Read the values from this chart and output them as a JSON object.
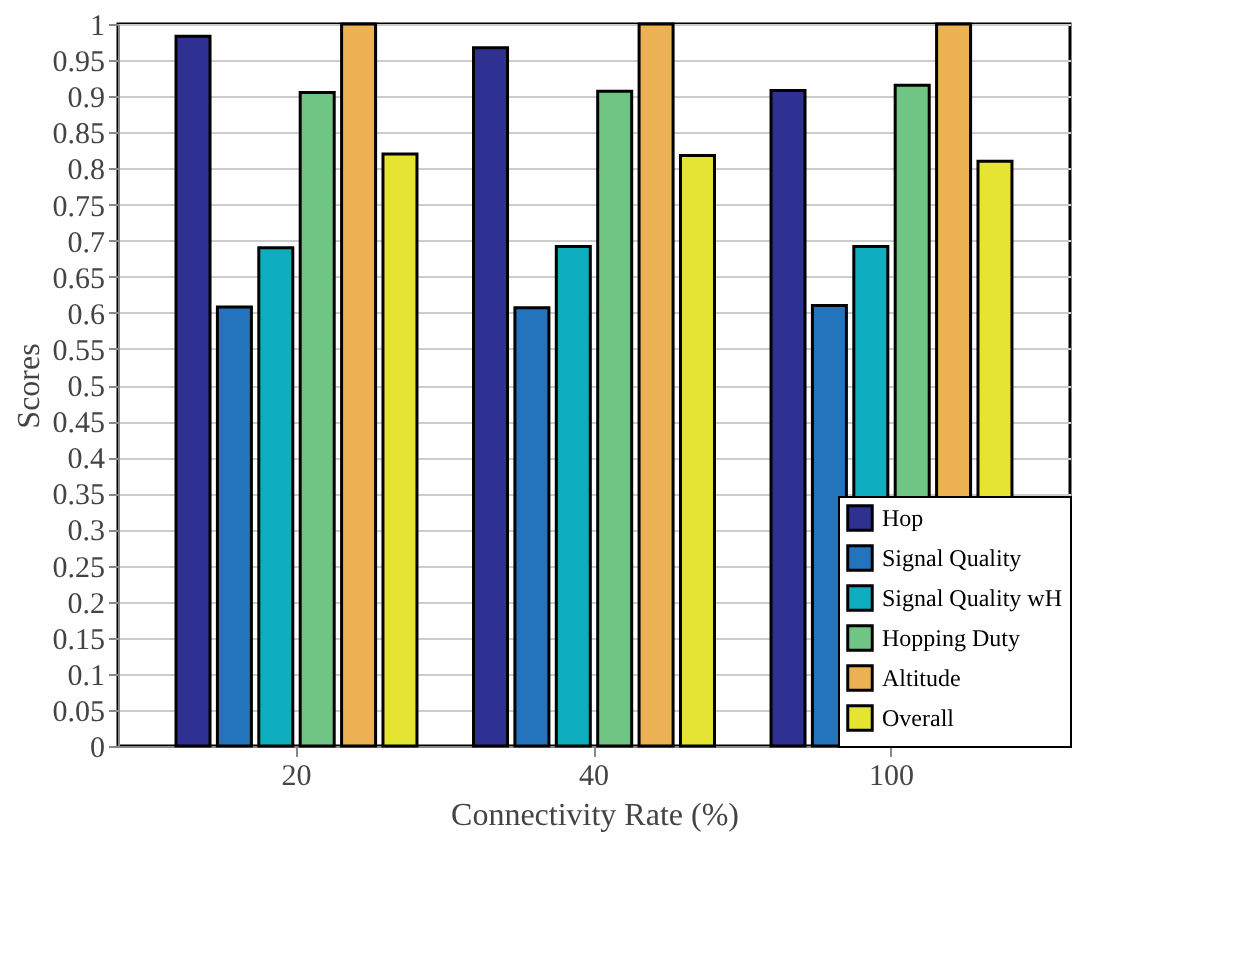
{
  "chart_data": {
    "type": "bar",
    "xlabel": "Connectivity Rate (%)",
    "ylabel": "Scores",
    "categories": [
      "20",
      "40",
      "100"
    ],
    "series": [
      {
        "name": "Hop",
        "color": "#2e3192",
        "values": [
          0.983,
          0.967,
          0.908
        ]
      },
      {
        "name": "Signal Quality",
        "color": "#2474bd",
        "values": [
          0.608,
          0.607,
          0.61
        ]
      },
      {
        "name": "Signal Quality wH",
        "color": "#0fadc0",
        "values": [
          0.69,
          0.692,
          0.692
        ]
      },
      {
        "name": "Hopping Duty",
        "color": "#71c584",
        "values": [
          0.905,
          0.907,
          0.915
        ]
      },
      {
        "name": "Altitude",
        "color": "#ebb152",
        "values": [
          1,
          1,
          1
        ]
      },
      {
        "name": "Overall",
        "color": "#e6e433",
        "values": [
          0.82,
          0.818,
          0.81
        ]
      }
    ],
    "ylim": [
      0,
      1
    ],
    "yticks": [
      0,
      0.05,
      0.1,
      0.15,
      0.2,
      0.25,
      0.3,
      0.35,
      0.4,
      0.45,
      0.5,
      0.55,
      0.6,
      0.65,
      0.7,
      0.75,
      0.8,
      0.85,
      0.9,
      0.95,
      1
    ],
    "grid": true,
    "legend": "bottom right"
  }
}
